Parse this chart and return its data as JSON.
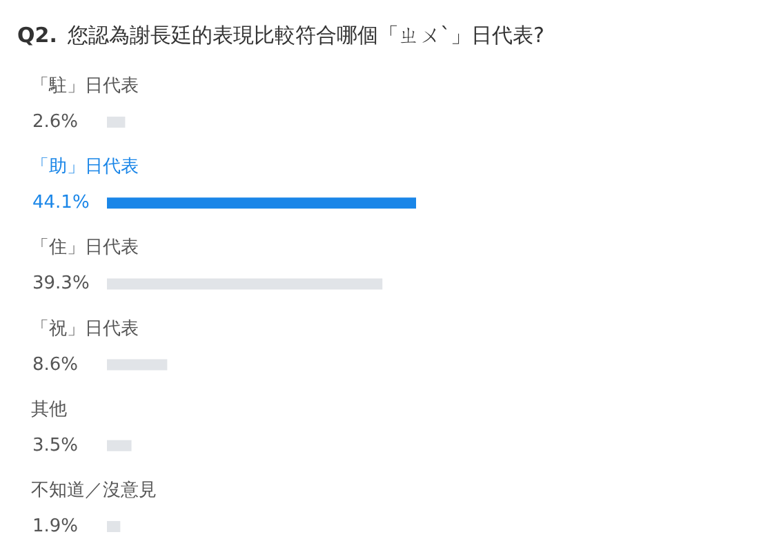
{
  "chart_data": {
    "type": "bar",
    "orientation": "horizontal",
    "title": "Q2. 您認為謝長廷的表現比較符合哪個「ㄓㄨˋ」日代表?",
    "categories": [
      "「駐」日代表",
      "「助」日代表",
      "「住」日代表",
      "「祝」日代表",
      "其他",
      "不知道／沒意見"
    ],
    "values": [
      2.6,
      44.1,
      39.3,
      8.6,
      3.5,
      1.9
    ],
    "colors": [
      "#e1e4e8",
      "#1a86e8",
      "#e1e4e8",
      "#e1e4e8",
      "#e1e4e8",
      "#e1e4e8"
    ],
    "value_labels": [
      "2.6%",
      "44.1%",
      "39.3%",
      "8.6%",
      "3.5%",
      "1.9%"
    ]
  }
}
